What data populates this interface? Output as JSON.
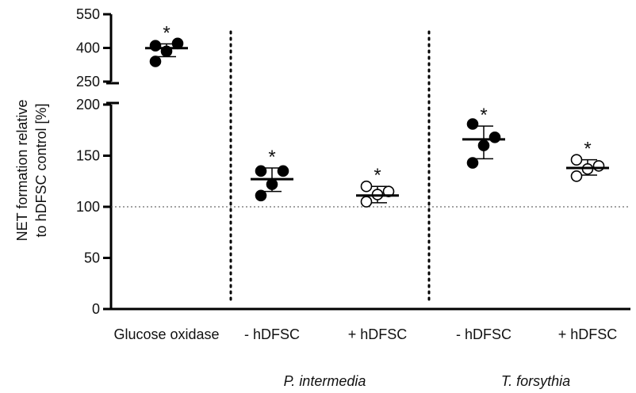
{
  "chart_data": {
    "type": "scatter",
    "ylabel": [
      "NET formation relative",
      "to hDFSC control [%]"
    ],
    "y_axis_lower": {
      "range": [
        0,
        200
      ],
      "ticks": [
        0,
        50,
        100,
        150,
        200
      ]
    },
    "y_axis_upper": {
      "range": [
        250,
        550
      ],
      "ticks": [
        250,
        400,
        550
      ]
    },
    "reference_line": 100,
    "categories": [
      "Glucose oxidase",
      "- hDFSC",
      "+ hDFSC",
      "- hDFSC",
      "+ hDFSC"
    ],
    "groups": [
      {
        "name": "P. intermedia",
        "categories": [
          1,
          2
        ]
      },
      {
        "name": "T. forsythia",
        "categories": [
          3,
          4
        ]
      }
    ],
    "series": [
      {
        "category": "Glucose oxidase",
        "marker": "filled",
        "points": [
          410,
          420,
          385,
          340
        ],
        "mean": 399,
        "sd_low": 361,
        "sd_high": 418,
        "significance": "*"
      },
      {
        "category": "- hDFSC",
        "marker": "filled",
        "points": [
          135,
          135,
          122,
          111
        ],
        "mean": 127,
        "sd_low": 115,
        "sd_high": 138,
        "significance": "*"
      },
      {
        "category": "+ hDFSC",
        "marker": "open",
        "points": [
          120,
          115,
          112,
          105
        ],
        "mean": 111,
        "sd_low": 104,
        "sd_high": 120,
        "significance": "*"
      },
      {
        "category": "- hDFSC",
        "marker": "filled",
        "points": [
          181,
          168,
          160,
          143
        ],
        "mean": 166,
        "sd_low": 147,
        "sd_high": 179,
        "significance": "*"
      },
      {
        "category": "+ hDFSC",
        "marker": "open",
        "points": [
          146,
          140,
          137,
          130
        ],
        "mean": 138,
        "sd_low": 131,
        "sd_high": 146,
        "significance": "*"
      }
    ]
  }
}
